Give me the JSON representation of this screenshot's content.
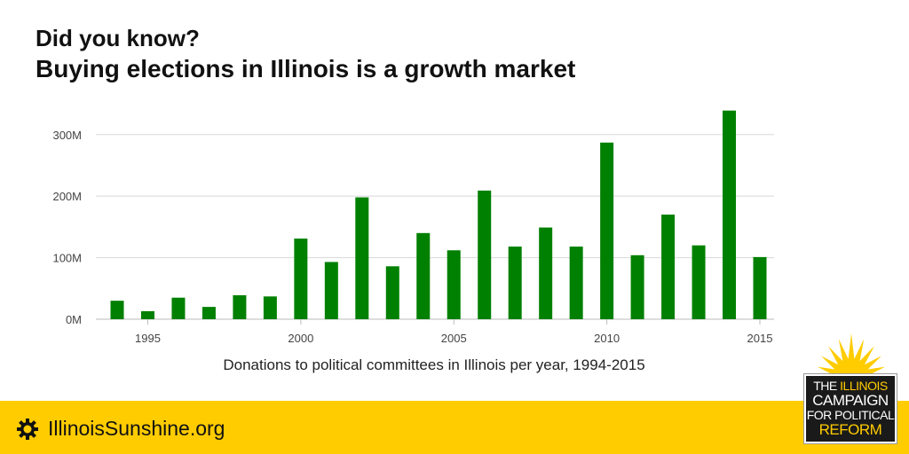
{
  "header": {
    "title": "Did you know?",
    "subtitle": "Buying elections in Illinois is a growth market"
  },
  "chart_data": {
    "type": "bar",
    "title": "Did you know?",
    "subtitle": "Buying elections in Illinois is a growth market",
    "caption": "Donations to political committees in Illinois per year, 1994-2015",
    "xlabel": "",
    "ylabel": "",
    "categories": [
      1994,
      1995,
      1996,
      1997,
      1998,
      1999,
      2000,
      2001,
      2002,
      2003,
      2004,
      2005,
      2006,
      2007,
      2008,
      2009,
      2010,
      2011,
      2012,
      2013,
      2014,
      2015
    ],
    "values": [
      30,
      13,
      35,
      20,
      39,
      37,
      131,
      93,
      198,
      86,
      140,
      112,
      209,
      118,
      149,
      118,
      287,
      104,
      170,
      120,
      339,
      101
    ],
    "value_unit": "M",
    "ylim": [
      0,
      340
    ],
    "yticks": [
      0,
      100,
      200,
      300
    ],
    "ytick_labels": [
      "0M",
      "100M",
      "200M",
      "300M"
    ],
    "xticks": [
      1995,
      2000,
      2005,
      2010,
      2015
    ],
    "xtick_labels": [
      "1995",
      "2000",
      "2005",
      "2010",
      "2015"
    ],
    "grid": true,
    "bar_color": "#008000"
  },
  "footer": {
    "link_text": "IllinoisSunshine.org",
    "icon": "gear-icon",
    "band_color": "#ffcc00"
  },
  "logo": {
    "line1_a": "THE",
    "line1_b": "ILLINOIS",
    "line2": "CAMPAIGN",
    "line3": "FOR POLITICAL",
    "line4": "REFORM",
    "icon": "sunburst-icon"
  }
}
